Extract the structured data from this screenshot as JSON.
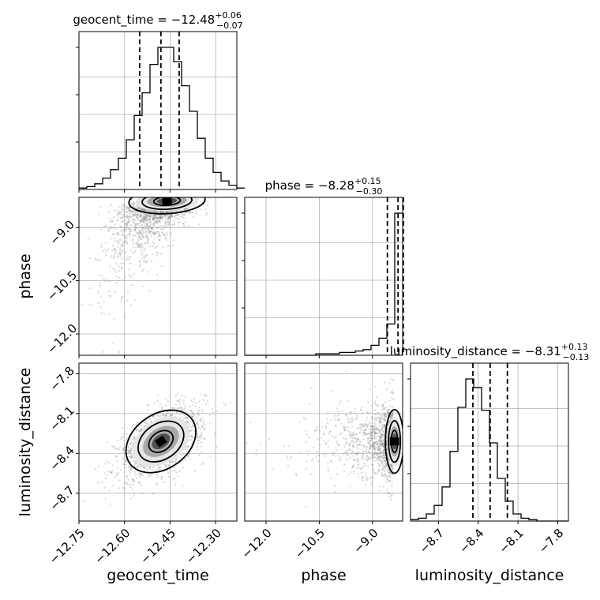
{
  "chart_data": {
    "type": "corner",
    "parameters": [
      "geocent_time",
      "phase",
      "luminosity_distance"
    ],
    "titles": [
      {
        "param": "geocent_time",
        "prefix": "geocent_time = ",
        "value": "−12.48",
        "plus": "+0.06",
        "minus": "−0.07"
      },
      {
        "param": "phase",
        "prefix": "phase = ",
        "value": "−8.28",
        "plus": "+0.15",
        "minus": "−0.30"
      },
      {
        "param": "luminosity_distance",
        "prefix": "luminosity_distance = ",
        "value": "−8.31",
        "plus": "+0.13",
        "minus": "−0.13"
      }
    ],
    "axes": {
      "geocent_time": {
        "range": [
          -12.75,
          -12.23
        ],
        "ticks": [
          -12.75,
          -12.6,
          -12.45,
          -12.3
        ],
        "tick_labels": [
          "−12.75",
          "−12.60",
          "−12.45",
          "−12.30"
        ]
      },
      "phase": {
        "range": [
          -12.6,
          -8.15
        ],
        "ticks": [
          -12.0,
          -10.5,
          -9.0
        ],
        "tick_labels": [
          "−12.0",
          "−10.5",
          "−9.0"
        ]
      },
      "luminosity_distance": {
        "range": [
          -8.91,
          -7.72
        ],
        "ticks": [
          -8.7,
          -8.4,
          -8.1,
          -7.8
        ],
        "tick_labels": [
          "−8.7",
          "−8.4",
          "−8.1",
          "−7.8"
        ]
      }
    },
    "quantiles": {
      "geocent_time": [
        -12.55,
        -12.48,
        -12.42
      ],
      "phase": [
        -8.58,
        -8.28,
        -8.13
      ],
      "luminosity_distance": [
        -8.44,
        -8.31,
        -8.18
      ]
    },
    "hist1d": {
      "geocent_time": {
        "edges_start": -12.75,
        "bin_width": 0.026,
        "counts": [
          1,
          2,
          4,
          8,
          14,
          22,
          35,
          52,
          68,
          88,
          100,
          100,
          90,
          73,
          55,
          36,
          22,
          12,
          6,
          3,
          1
        ]
      },
      "phase": {
        "edges_start": -12.6,
        "bin_width": 0.2225,
        "counts": [
          0,
          0,
          0,
          0,
          0,
          0,
          0,
          0,
          0,
          1,
          1,
          1,
          2,
          2,
          3,
          4,
          7,
          12,
          22,
          100
        ]
      },
      "luminosity_distance": {
        "edges_start": -8.91,
        "bin_width": 0.0595,
        "counts": [
          1,
          2,
          5,
          11,
          24,
          49,
          80,
          100,
          94,
          78,
          55,
          30,
          14,
          5,
          2,
          1,
          0,
          0,
          0,
          0
        ]
      }
    },
    "hist1d_ymax": 100,
    "grid": true,
    "scatter_color": "#808080",
    "line_color": "#000000"
  }
}
